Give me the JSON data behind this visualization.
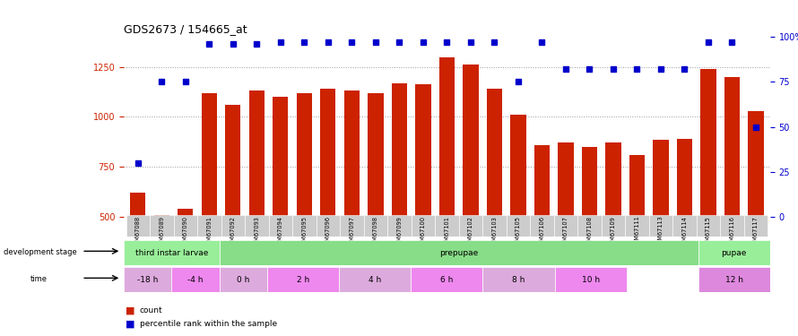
{
  "title": "GDS2673 / 154665_at",
  "samples": [
    "GSM67088",
    "GSM67089",
    "GSM67090",
    "GSM67091",
    "GSM67092",
    "GSM67093",
    "GSM67094",
    "GSM67095",
    "GSM67096",
    "GSM67097",
    "GSM67098",
    "GSM67099",
    "GSM67100",
    "GSM67101",
    "GSM67102",
    "GSM67103",
    "GSM67105",
    "GSM67106",
    "GSM67107",
    "GSM67108",
    "GSM67109",
    "GSM67111",
    "GSM67113",
    "GSM67114",
    "GSM67115",
    "GSM67116",
    "GSM67117"
  ],
  "counts": [
    620,
    510,
    540,
    1120,
    1060,
    1130,
    1100,
    1120,
    1140,
    1130,
    1120,
    1170,
    1165,
    1300,
    1260,
    1140,
    1010,
    860,
    870,
    850,
    870,
    810,
    885,
    890,
    1240,
    1200,
    1030
  ],
  "percentile_ranks": [
    30,
    75,
    75,
    96,
    96,
    96,
    97,
    97,
    97,
    97,
    97,
    97,
    97,
    97,
    97,
    97,
    75,
    97,
    82,
    82,
    82,
    82,
    82,
    82,
    97,
    97,
    50
  ],
  "bar_color": "#cc2200",
  "dot_color": "#0000cc",
  "ylim_left": [
    500,
    1400
  ],
  "ylim_right": [
    0,
    100
  ],
  "yticks_left": [
    500,
    750,
    1000,
    1250
  ],
  "yticks_right": [
    0,
    25,
    50,
    75,
    100
  ],
  "right_ytick_labels": [
    "0",
    "25",
    "50",
    "75",
    "100%"
  ],
  "stage_groups": [
    {
      "label": "third instar larvae",
      "start": 0,
      "end": 4,
      "color": "#99ee99"
    },
    {
      "label": "prepupae",
      "start": 4,
      "end": 24,
      "color": "#88dd88"
    },
    {
      "label": "pupae",
      "start": 24,
      "end": 27,
      "color": "#99ee99"
    }
  ],
  "time_groups": [
    {
      "label": "-18 h",
      "start": 0,
      "end": 2,
      "color": "#ddaadd"
    },
    {
      "label": "-4 h",
      "start": 2,
      "end": 4,
      "color": "#ee88ee"
    },
    {
      "label": "0 h",
      "start": 4,
      "end": 6,
      "color": "#ddaadd"
    },
    {
      "label": "2 h",
      "start": 6,
      "end": 9,
      "color": "#ee88ee"
    },
    {
      "label": "4 h",
      "start": 9,
      "end": 12,
      "color": "#ddaadd"
    },
    {
      "label": "6 h",
      "start": 12,
      "end": 15,
      "color": "#ee88ee"
    },
    {
      "label": "8 h",
      "start": 15,
      "end": 18,
      "color": "#ddaadd"
    },
    {
      "label": "10 h",
      "start": 18,
      "end": 21,
      "color": "#ee88ee"
    },
    {
      "label": "12 h",
      "start": 24,
      "end": 27,
      "color": "#dd88dd"
    }
  ],
  "background_color": "#ffffff",
  "tick_label_color": "#cc2200",
  "right_axis_color": "#0000cc",
  "grid_color": "#999999",
  "xlabel_bg_color": "#cccccc",
  "legend_count_label": "count",
  "legend_pct_label": "percentile rank within the sample",
  "dev_stage_label": "development stage",
  "time_label": "time"
}
